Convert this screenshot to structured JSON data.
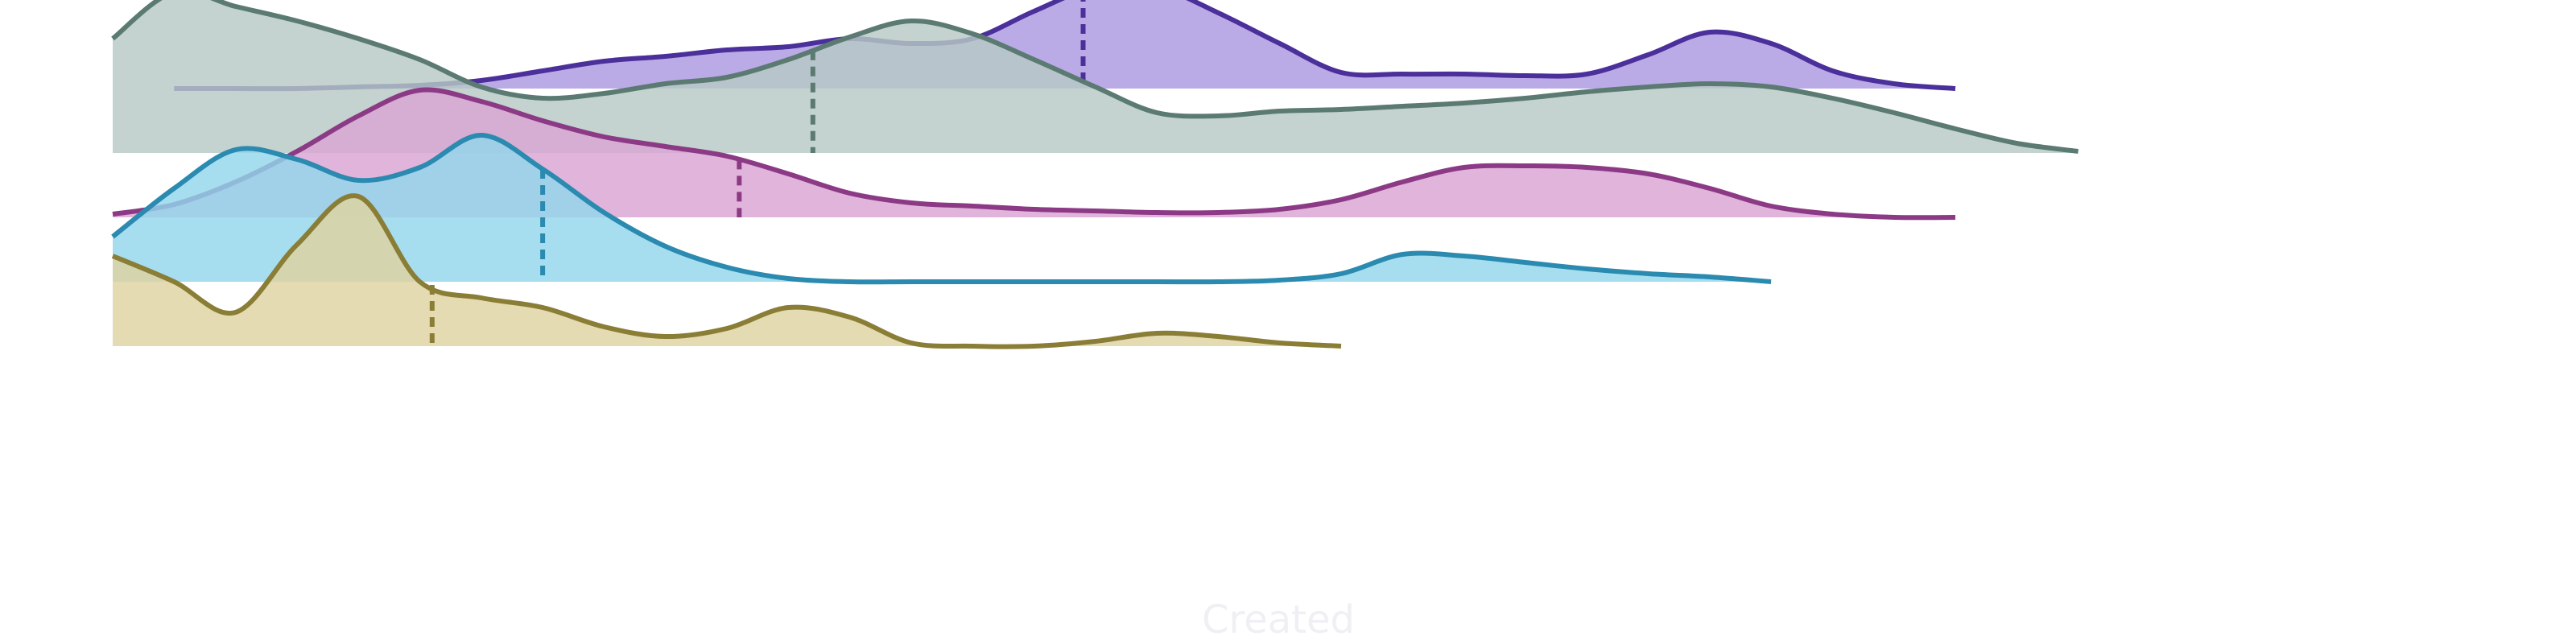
{
  "chart_data": {
    "type": "area",
    "subtype": "ridgeline",
    "title": "",
    "xlabel": "Created",
    "ylabel": "",
    "grid": false,
    "legend": "none",
    "series": [
      {
        "color": "#4b2f9a",
        "fill": "#ab99e0",
        "baseline": 0.5,
        "median": 79,
        "x": [
          5,
          10,
          15,
          20,
          25,
          30,
          35,
          40,
          45,
          50,
          55,
          60,
          65,
          70,
          75,
          80,
          85,
          90,
          95,
          100,
          105,
          110,
          115,
          120,
          125,
          130,
          135,
          140,
          145,
          150
        ],
        "density": [
          0.0,
          0.0,
          0.0,
          0.01,
          0.02,
          0.05,
          0.11,
          0.17,
          0.2,
          0.24,
          0.26,
          0.31,
          0.28,
          0.31,
          0.48,
          0.63,
          0.63,
          0.47,
          0.28,
          0.1,
          0.09,
          0.09,
          0.08,
          0.09,
          0.21,
          0.35,
          0.28,
          0.11,
          0.03,
          0.0
        ]
      },
      {
        "color": "#5b7a72",
        "fill": "#b7c9c4",
        "baseline": 1.5,
        "median": 57,
        "x": [
          0,
          5,
          10,
          15,
          20,
          25,
          30,
          35,
          40,
          45,
          50,
          55,
          60,
          65,
          70,
          75,
          80,
          85,
          90,
          95,
          100,
          105,
          110,
          115,
          120,
          125,
          130,
          135,
          140,
          145,
          150,
          155,
          160
        ],
        "density": [
          0.71,
          1.0,
          0.91,
          0.82,
          0.71,
          0.58,
          0.41,
          0.34,
          0.37,
          0.43,
          0.47,
          0.58,
          0.72,
          0.82,
          0.74,
          0.58,
          0.41,
          0.25,
          0.23,
          0.26,
          0.27,
          0.29,
          0.31,
          0.34,
          0.38,
          0.41,
          0.43,
          0.41,
          0.34,
          0.25,
          0.15,
          0.06,
          0.01
        ]
      },
      {
        "color": "#8c3a86",
        "fill": "#dba5d3",
        "baseline": 2.5,
        "median": 51,
        "x": [
          0,
          5,
          10,
          15,
          20,
          25,
          30,
          35,
          40,
          45,
          50,
          55,
          60,
          65,
          70,
          75,
          80,
          85,
          90,
          95,
          100,
          105,
          110,
          115,
          120,
          125,
          130,
          135,
          140,
          145,
          150
        ],
        "density": [
          0.02,
          0.08,
          0.22,
          0.41,
          0.63,
          0.79,
          0.72,
          0.6,
          0.5,
          0.44,
          0.38,
          0.27,
          0.15,
          0.09,
          0.07,
          0.05,
          0.04,
          0.03,
          0.03,
          0.05,
          0.11,
          0.22,
          0.31,
          0.32,
          0.31,
          0.27,
          0.18,
          0.07,
          0.02,
          0.0,
          0.0
        ]
      },
      {
        "color": "#2b8ab0",
        "fill": "#92d6ec",
        "baseline": 3.5,
        "median": 35,
        "x": [
          0,
          5,
          10,
          15,
          20,
          25,
          30,
          35,
          40,
          45,
          50,
          55,
          60,
          65,
          70,
          75,
          80,
          85,
          90,
          95,
          100,
          105,
          110,
          115,
          120,
          125,
          130,
          135
        ],
        "density": [
          0.28,
          0.58,
          0.82,
          0.76,
          0.63,
          0.71,
          0.91,
          0.7,
          0.43,
          0.22,
          0.09,
          0.02,
          0.0,
          0.0,
          0.0,
          0.0,
          0.0,
          0.0,
          0.0,
          0.01,
          0.05,
          0.17,
          0.16,
          0.12,
          0.08,
          0.05,
          0.03,
          0.0
        ]
      },
      {
        "color": "#8a7d35",
        "fill": "#ded3a1",
        "baseline": 4.5,
        "median": 26,
        "x": [
          0,
          5,
          10,
          15,
          20,
          25,
          30,
          35,
          40,
          45,
          50,
          55,
          60,
          65,
          70,
          75,
          80,
          85,
          90,
          95,
          100
        ],
        "density": [
          0.56,
          0.4,
          0.21,
          0.63,
          0.93,
          0.4,
          0.3,
          0.24,
          0.12,
          0.06,
          0.11,
          0.24,
          0.18,
          0.02,
          0.0,
          0.0,
          0.03,
          0.08,
          0.06,
          0.02,
          0.0
        ]
      }
    ]
  }
}
